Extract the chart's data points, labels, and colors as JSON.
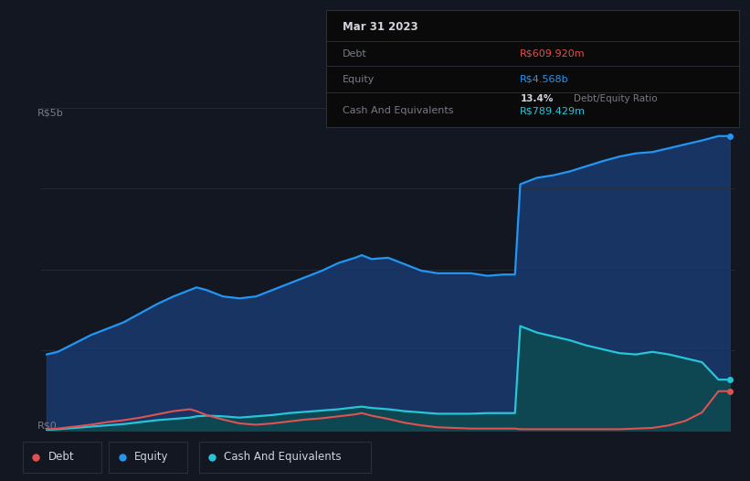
{
  "bg_color": "#131722",
  "plot_bg_color": "#131c2e",
  "grid_color": "#2a2e39",
  "info_box": {
    "date": "Mar 31 2023",
    "debt_label": "Debt",
    "debt_value": "R$609.920m",
    "equity_label": "Equity",
    "equity_value": "R$4.568b",
    "ratio": "13.4%",
    "ratio_label": "Debt/Equity Ratio",
    "cash_label": "Cash And Equivalents",
    "cash_value": "R$789.429m"
  },
  "ylabel_top": "R$5b",
  "ylabel_bottom": "R$0",
  "line_colors": {
    "debt": "#e05252",
    "equity": "#2196f3",
    "cash": "#26c6da"
  },
  "fill_colors": {
    "equity": "#1a3a6e",
    "cash": "#0d4a4e"
  },
  "fill_alpha": {
    "equity": 0.85,
    "cash": 0.85
  },
  "legend": [
    {
      "label": "Debt",
      "color": "#e05252"
    },
    {
      "label": "Equity",
      "color": "#2196f3"
    },
    {
      "label": "Cash And Equivalents",
      "color": "#26c6da"
    }
  ],
  "years": [
    2012.83,
    2013.0,
    2013.25,
    2013.5,
    2013.75,
    2014.0,
    2014.25,
    2014.5,
    2014.75,
    2015.0,
    2015.1,
    2015.25,
    2015.5,
    2015.75,
    2016.0,
    2016.25,
    2016.5,
    2016.75,
    2017.0,
    2017.25,
    2017.5,
    2017.6,
    2017.75,
    2018.0,
    2018.25,
    2018.5,
    2018.75,
    2019.0,
    2019.25,
    2019.5,
    2019.75,
    2019.92,
    2020.0,
    2020.25,
    2020.5,
    2020.75,
    2021.0,
    2021.25,
    2021.5,
    2021.75,
    2022.0,
    2022.25,
    2022.5,
    2022.75,
    2023.0,
    2023.17
  ],
  "equity": [
    1.18,
    1.22,
    1.35,
    1.48,
    1.58,
    1.68,
    1.82,
    1.96,
    2.08,
    2.18,
    2.22,
    2.18,
    2.08,
    2.05,
    2.08,
    2.18,
    2.28,
    2.38,
    2.48,
    2.6,
    2.68,
    2.72,
    2.66,
    2.68,
    2.58,
    2.48,
    2.44,
    2.44,
    2.44,
    2.4,
    2.42,
    2.42,
    3.82,
    3.92,
    3.96,
    4.02,
    4.1,
    4.18,
    4.25,
    4.3,
    4.32,
    4.38,
    4.44,
    4.5,
    4.568,
    4.568
  ],
  "debt": [
    0.02,
    0.03,
    0.06,
    0.09,
    0.13,
    0.16,
    0.2,
    0.25,
    0.3,
    0.33,
    0.3,
    0.24,
    0.17,
    0.11,
    0.09,
    0.11,
    0.14,
    0.17,
    0.19,
    0.22,
    0.25,
    0.27,
    0.23,
    0.18,
    0.12,
    0.08,
    0.05,
    0.04,
    0.03,
    0.03,
    0.03,
    0.03,
    0.02,
    0.02,
    0.02,
    0.02,
    0.02,
    0.02,
    0.02,
    0.03,
    0.04,
    0.08,
    0.15,
    0.28,
    0.61,
    0.61
  ],
  "cash": [
    0.01,
    0.02,
    0.04,
    0.06,
    0.08,
    0.1,
    0.13,
    0.16,
    0.18,
    0.2,
    0.22,
    0.23,
    0.22,
    0.2,
    0.22,
    0.24,
    0.27,
    0.29,
    0.31,
    0.33,
    0.36,
    0.37,
    0.35,
    0.33,
    0.3,
    0.28,
    0.26,
    0.26,
    0.26,
    0.27,
    0.27,
    0.27,
    1.62,
    1.52,
    1.46,
    1.4,
    1.32,
    1.26,
    1.2,
    1.18,
    1.22,
    1.18,
    1.12,
    1.06,
    0.789,
    0.789
  ],
  "xmin": 2012.75,
  "xmax": 2023.25,
  "ymin": 0.0,
  "ymax": 5.0,
  "yticks": [
    0,
    1.25,
    2.5,
    3.75,
    5.0
  ],
  "xticks": [
    2013,
    2014,
    2015,
    2016,
    2017,
    2018,
    2019,
    2020,
    2021,
    2022,
    2023
  ]
}
